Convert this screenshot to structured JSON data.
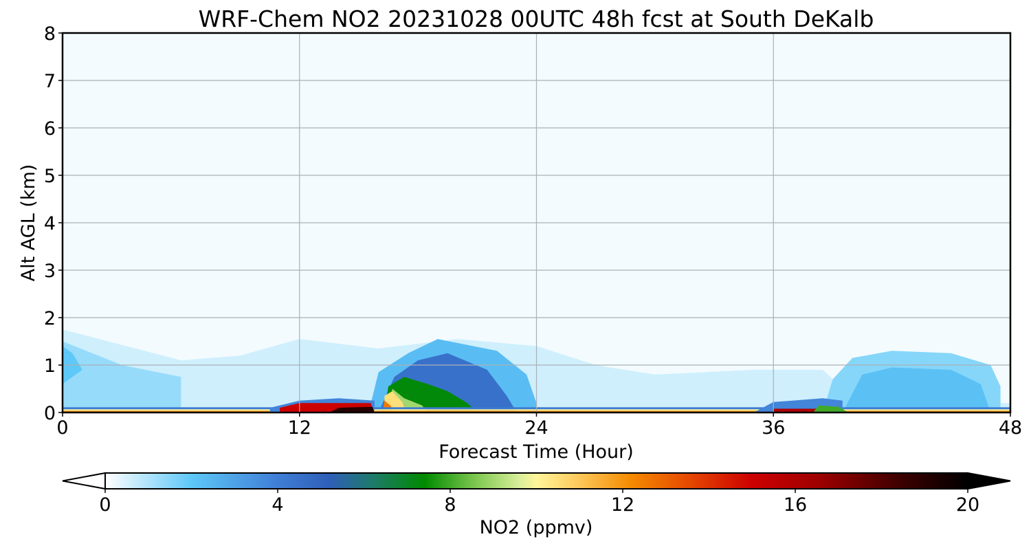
{
  "chart_data": {
    "type": "heatmap",
    "title": "WRF-Chem NO2  20231028 00UTC 48h fcst at South DeKalb",
    "xlabel": "Forecast Time (Hour)",
    "ylabel": "Alt AGL (km)",
    "xlim": [
      0,
      48
    ],
    "ylim": [
      0,
      8
    ],
    "xticks": [
      "0",
      "12",
      "24",
      "36",
      "48"
    ],
    "yticks": [
      "0",
      "1",
      "2",
      "3",
      "4",
      "5",
      "6",
      "7",
      "8"
    ],
    "grid": true,
    "colorbar": {
      "label": "NO2  (ppmv)",
      "range": [
        0,
        20
      ],
      "ticks": [
        "0",
        "4",
        "8",
        "12",
        "16",
        "20"
      ],
      "extend": "both",
      "stops": [
        {
          "v": 0,
          "color": "#ffffff"
        },
        {
          "v": 2,
          "color": "#5ec8f8"
        },
        {
          "v": 4,
          "color": "#3f7ed6"
        },
        {
          "v": 5.2,
          "color": "#2f5fb8"
        },
        {
          "v": 6.2,
          "color": "#1e7a6a"
        },
        {
          "v": 7.4,
          "color": "#008a00"
        },
        {
          "v": 8.6,
          "color": "#7fc850"
        },
        {
          "v": 9.6,
          "color": "#d8ee9a"
        },
        {
          "v": 10,
          "color": "#fff59a"
        },
        {
          "v": 11,
          "color": "#fcc85a"
        },
        {
          "v": 12.2,
          "color": "#f58a00"
        },
        {
          "v": 13.5,
          "color": "#e64a00"
        },
        {
          "v": 15,
          "color": "#cc0000"
        },
        {
          "v": 16.5,
          "color": "#a00000"
        },
        {
          "v": 18.5,
          "color": "#3a0000"
        },
        {
          "v": 20,
          "color": "#000000"
        }
      ],
      "under_color": "#ffffff",
      "over_color": "#000000"
    },
    "field": {
      "background_value": 0.15,
      "regions": [
        {
          "points": [
            [
              0,
              0
            ],
            [
              48,
              0
            ],
            [
              48,
              0.2
            ],
            [
              44,
              0.2
            ],
            [
              40,
              0.3
            ],
            [
              38.5,
              0.9
            ],
            [
              35,
              0.9
            ],
            [
              30,
              0.8
            ],
            [
              27,
              1.0
            ],
            [
              24,
              1.4
            ],
            [
              20,
              1.55
            ],
            [
              16,
              1.35
            ],
            [
              12,
              1.55
            ],
            [
              9,
              1.2
            ],
            [
              6,
              1.1
            ],
            [
              0,
              1.75
            ]
          ],
          "value": 0.6
        },
        {
          "points": [
            [
              0,
              0
            ],
            [
              6,
              0
            ],
            [
              6,
              0.75
            ],
            [
              3,
              1.0
            ],
            [
              0,
              1.5
            ]
          ],
          "value": 1.3
        },
        {
          "points": [
            [
              0,
              0.6
            ],
            [
              1,
              0.9
            ],
            [
              0.5,
              1.25
            ],
            [
              0,
              1.4
            ]
          ],
          "value": 2.0
        },
        {
          "points": [
            [
              38.5,
              0
            ],
            [
              47.5,
              0
            ],
            [
              47.5,
              0.55
            ],
            [
              47,
              1.0
            ],
            [
              45,
              1.25
            ],
            [
              42,
              1.3
            ],
            [
              40,
              1.15
            ],
            [
              39,
              0.7
            ]
          ],
          "value": 1.5
        },
        {
          "points": [
            [
              39.5,
              0
            ],
            [
              47,
              0
            ],
            [
              46.5,
              0.6
            ],
            [
              45,
              0.9
            ],
            [
              42,
              0.95
            ],
            [
              40.5,
              0.8
            ]
          ],
          "value": 2.2
        },
        {
          "points": [
            [
              15.5,
              0
            ],
            [
              24,
              0
            ],
            [
              24,
              0.2
            ],
            [
              23.5,
              0.8
            ],
            [
              22,
              1.3
            ],
            [
              19,
              1.55
            ],
            [
              17.5,
              1.25
            ],
            [
              16,
              0.85
            ]
          ],
          "value": 2.3
        },
        {
          "points": [
            [
              16,
              0
            ],
            [
              23,
              0
            ],
            [
              22.5,
              0.35
            ],
            [
              21.5,
              0.9
            ],
            [
              19.5,
              1.25
            ],
            [
              18,
              1.1
            ],
            [
              16.8,
              0.75
            ]
          ],
          "value": 4.5
        },
        {
          "points": [
            [
              16.3,
              0
            ],
            [
              21,
              0
            ],
            [
              20.5,
              0.2
            ],
            [
              19.5,
              0.45
            ],
            [
              18.5,
              0.6
            ],
            [
              17.3,
              0.75
            ],
            [
              16.5,
              0.55
            ]
          ],
          "value": 7.3
        },
        {
          "points": [
            [
              16.5,
              0
            ],
            [
              18.5,
              0
            ],
            [
              18.2,
              0.15
            ],
            [
              17.3,
              0.3
            ],
            [
              16.7,
              0.5
            ]
          ],
          "value": 9.0
        },
        {
          "points": [
            [
              16.3,
              0
            ],
            [
              17.4,
              0
            ],
            [
              17.2,
              0.22
            ],
            [
              16.7,
              0.45
            ],
            [
              16.3,
              0.35
            ]
          ],
          "value": 10.5
        },
        {
          "points": [
            [
              16.2,
              0
            ],
            [
              16.8,
              0
            ],
            [
              16.6,
              0.15
            ],
            [
              16.3,
              0.25
            ]
          ],
          "value": 12.5
        },
        {
          "points": [
            [
              0,
              0
            ],
            [
              48,
              0
            ],
            [
              48,
              0.04
            ],
            [
              0,
              0.04
            ]
          ],
          "value": 12.0
        },
        {
          "points": [
            [
              0,
              0.04
            ],
            [
              48,
              0.04
            ],
            [
              48,
              0.07
            ],
            [
              0,
              0.07
            ]
          ],
          "value": 10.0
        },
        {
          "points": [
            [
              0,
              0.07
            ],
            [
              48,
              0.07
            ],
            [
              48,
              0.11
            ],
            [
              0,
              0.11
            ]
          ],
          "value": 4.2
        },
        {
          "points": [
            [
              10.5,
              0
            ],
            [
              15,
              0
            ],
            [
              15.8,
              0.05
            ],
            [
              15.8,
              0.25
            ],
            [
              14,
              0.3
            ],
            [
              12,
              0.25
            ],
            [
              10.5,
              0.1
            ]
          ],
          "value": 3.8
        },
        {
          "points": [
            [
              11,
              0
            ],
            [
              15.8,
              0
            ],
            [
              15.6,
              0.2
            ],
            [
              12,
              0.2
            ],
            [
              11,
              0.1
            ]
          ],
          "value": 15.0
        },
        {
          "points": [
            [
              13.5,
              0
            ],
            [
              15.8,
              0
            ],
            [
              15.7,
              0.12
            ],
            [
              14,
              0.1
            ]
          ],
          "value": 19.0
        },
        {
          "points": [
            [
              35,
              0
            ],
            [
              39.5,
              0
            ],
            [
              39.5,
              0.25
            ],
            [
              38.5,
              0.3
            ],
            [
              36,
              0.22
            ]
          ],
          "value": 3.8
        },
        {
          "points": [
            [
              36,
              0
            ],
            [
              39,
              0
            ],
            [
              38.5,
              0.08
            ],
            [
              36,
              0.08
            ]
          ],
          "value": 16.0
        },
        {
          "points": [
            [
              38,
              0
            ],
            [
              39.8,
              0
            ],
            [
              39.3,
              0.12
            ],
            [
              38.3,
              0.15
            ]
          ],
          "value": 8.0
        }
      ]
    }
  }
}
